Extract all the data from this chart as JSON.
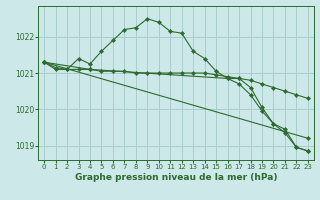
{
  "background_color": "#cce8e8",
  "grid_color": "#aacccc",
  "line_color": "#2d6a2d",
  "title": "Graphe pression niveau de la mer (hPa)",
  "title_fontsize": 6.5,
  "ylabel_labels": [
    1019,
    1020,
    1021,
    1022
  ],
  "ylabel_fontsize": 5.5,
  "xlabel_fontsize": 5.0,
  "xlim": [
    -0.5,
    23.5
  ],
  "ylim": [
    1018.6,
    1022.85
  ],
  "series": [
    {
      "x": [
        0,
        1,
        2,
        3,
        4,
        5,
        6,
        7,
        8,
        9,
        10,
        11,
        12,
        13,
        14,
        15,
        16,
        17,
        18,
        19,
        20,
        21,
        22,
        23
      ],
      "y": [
        1021.3,
        1021.1,
        1021.1,
        1021.4,
        1021.25,
        1021.6,
        1021.9,
        1022.2,
        1022.25,
        1022.5,
        1022.4,
        1022.15,
        1022.1,
        1021.6,
        1021.4,
        1021.05,
        1020.85,
        1020.85,
        1020.6,
        1020.05,
        1019.6,
        1019.45,
        1018.95,
        1018.85
      ]
    },
    {
      "x": [
        0,
        1,
        2,
        3,
        4,
        5,
        6,
        7,
        8,
        9,
        10,
        11,
        12,
        13,
        14,
        15,
        16,
        17,
        18,
        19,
        20,
        21,
        22,
        23
      ],
      "y": [
        1021.3,
        1021.15,
        1021.1,
        1021.1,
        1021.1,
        1021.05,
        1021.05,
        1021.05,
        1021.0,
        1021.0,
        1021.0,
        1021.0,
        1021.0,
        1021.0,
        1021.0,
        1020.95,
        1020.9,
        1020.85,
        1020.8,
        1020.7,
        1020.6,
        1020.5,
        1020.4,
        1020.3
      ]
    },
    {
      "x": [
        0,
        23
      ],
      "y": [
        1021.3,
        1019.2
      ]
    },
    {
      "x": [
        0,
        4,
        16,
        17,
        18,
        19,
        20,
        21,
        22,
        23
      ],
      "y": [
        1021.3,
        1021.1,
        1020.85,
        1020.7,
        1020.4,
        1019.95,
        1019.6,
        1019.35,
        1018.95,
        1018.85
      ]
    }
  ]
}
